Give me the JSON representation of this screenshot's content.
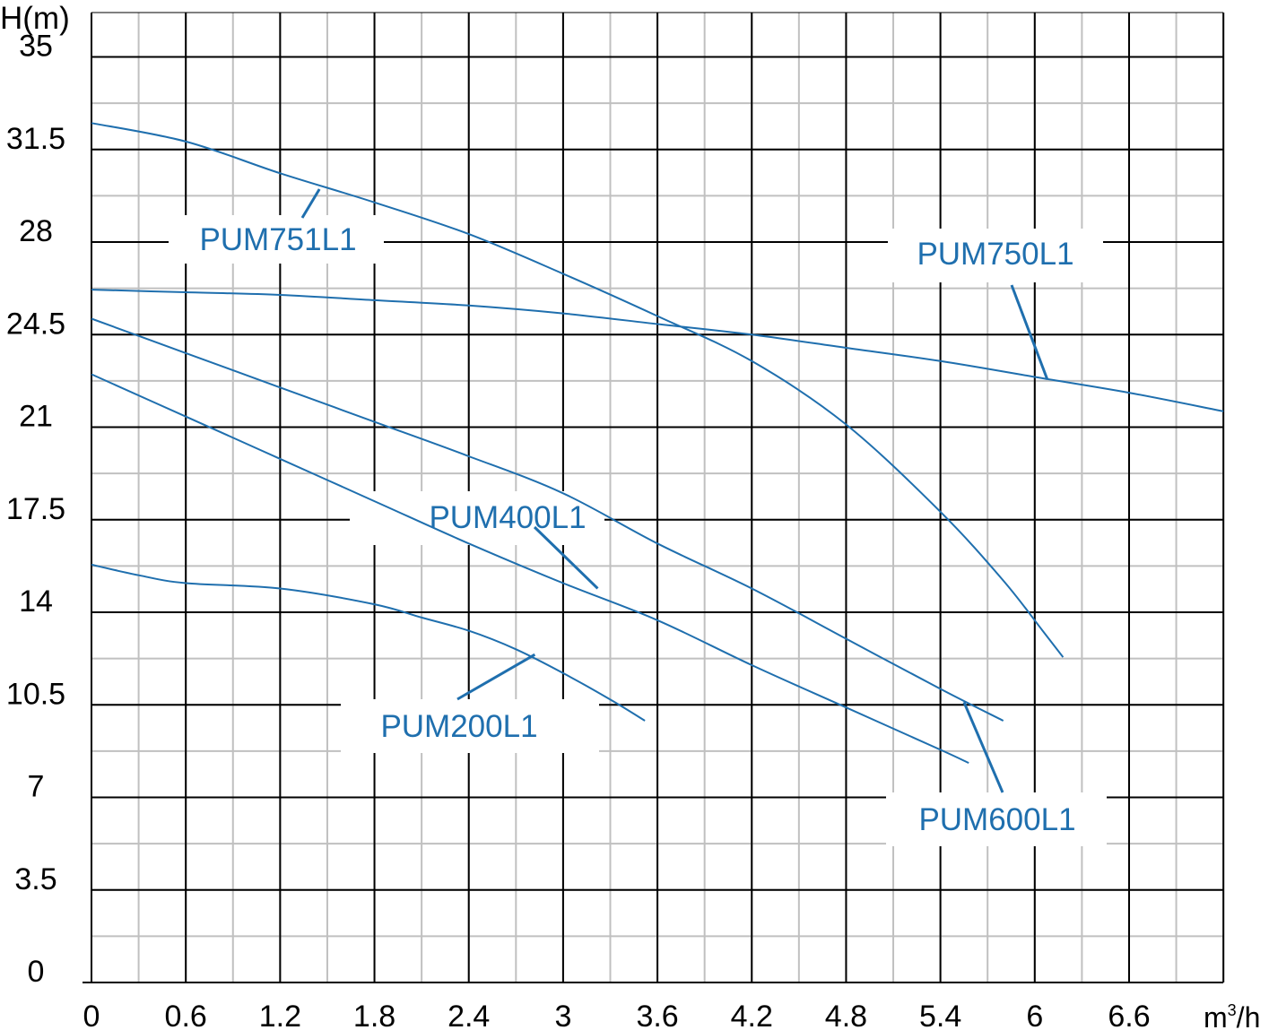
{
  "chart_data": {
    "type": "line",
    "ylabel": "H(m)",
    "xlabel_base": "m",
    "xlabel_sup": "3",
    "xlabel_tail": "/h",
    "xlim": [
      0,
      7.2
    ],
    "ylim": [
      0,
      35
    ],
    "x_ticks": [
      "0",
      "0.6",
      "1.2",
      "1.8",
      "2.4",
      "3",
      "3.6",
      "4.2",
      "4.8",
      "5.4",
      "6",
      "6.6"
    ],
    "y_ticks": [
      "0",
      "3.5",
      "7",
      "10.5",
      "14",
      "17.5",
      "21",
      "24.5",
      "28",
      "31.5",
      "35"
    ],
    "grid": true,
    "colors": {
      "curve": "#1f6fae",
      "label": "#1f6fae",
      "major_grid": "#000000",
      "minor_grid": "#c0c0c0"
    },
    "series": [
      {
        "name": "PUM751L1",
        "x": [
          0,
          0.6,
          1.2,
          1.8,
          2.4,
          3.0,
          3.6,
          4.2,
          4.8,
          5.4,
          5.8,
          6.05,
          6.18
        ],
        "y": [
          32.5,
          31.8,
          30.6,
          29.5,
          28.3,
          26.8,
          25.2,
          23.5,
          21.1,
          17.8,
          15.2,
          13.3,
          12.3
        ]
      },
      {
        "name": "PUM750L1",
        "x": [
          0,
          0.6,
          1.2,
          1.8,
          2.4,
          3.0,
          3.6,
          4.2,
          4.8,
          5.4,
          6.0,
          6.6,
          7.2
        ],
        "y": [
          26.2,
          26.1,
          26.0,
          25.8,
          25.6,
          25.3,
          24.9,
          24.5,
          24.0,
          23.5,
          22.9,
          22.3,
          21.6
        ]
      },
      {
        "name": "PUM600L1",
        "x": [
          0,
          0.6,
          1.2,
          1.8,
          2.4,
          3.0,
          3.6,
          4.2,
          4.8,
          5.4,
          5.8
        ],
        "y": [
          25.1,
          23.8,
          22.5,
          21.2,
          19.9,
          18.5,
          16.6,
          14.9,
          13.0,
          11.1,
          9.9
        ]
      },
      {
        "name": "PUM400L1",
        "x": [
          0,
          0.6,
          1.2,
          1.8,
          2.4,
          3.0,
          3.6,
          4.2,
          4.8,
          5.4,
          5.58
        ],
        "y": [
          23.0,
          21.4,
          19.8,
          18.2,
          16.6,
          15.1,
          13.7,
          12.0,
          10.4,
          8.8,
          8.3
        ]
      },
      {
        "name": "PUM200L1",
        "x": [
          0,
          0.3,
          0.6,
          1.2,
          1.8,
          2.1,
          2.4,
          2.7,
          3.0,
          3.3,
          3.52
        ],
        "y": [
          15.8,
          15.4,
          15.1,
          14.9,
          14.3,
          13.8,
          13.3,
          12.6,
          11.7,
          10.7,
          9.9
        ]
      }
    ],
    "annotations": [
      {
        "text": "PUM751L1",
        "anchor_x": 1.45,
        "anchor_y": 30.0
      },
      {
        "text": "PUM750L1",
        "anchor_x": 6.08,
        "anchor_y": 22.8
      },
      {
        "text": "PUM600L1",
        "anchor_x": 5.55,
        "anchor_y": 10.6
      },
      {
        "text": "PUM400L1",
        "anchor_x": 3.22,
        "anchor_y": 14.9
      },
      {
        "text": "PUM200L1",
        "anchor_x": 2.82,
        "anchor_y": 12.4
      }
    ]
  }
}
